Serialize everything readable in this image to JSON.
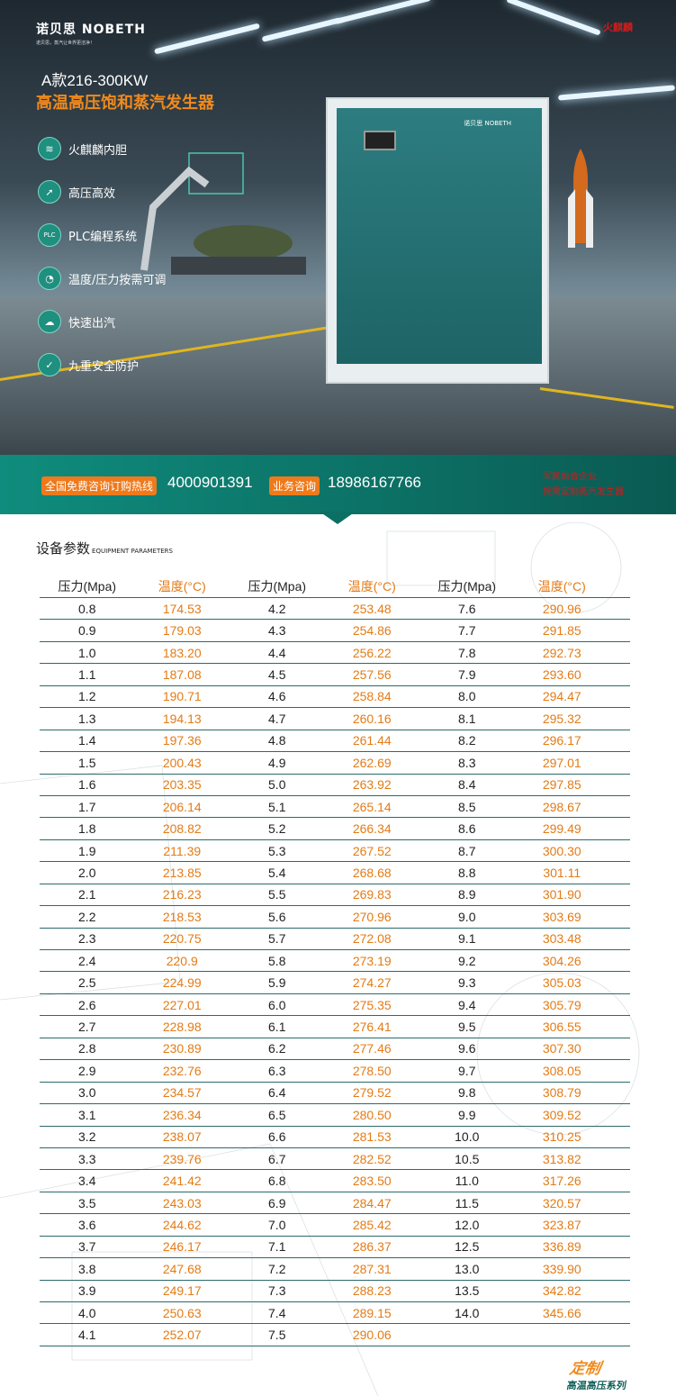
{
  "hero": {
    "logo_text": "诺贝思 NOBETH",
    "logo_slogan": "诺贝思，蒸汽让世界更洁净！",
    "model": "A款216-300KW",
    "subtitle": "高温高压饱和蒸汽发生器",
    "corner_mark": "火麒麟",
    "machine_brand": "诺贝思 NOBETH",
    "features": [
      {
        "icon": "layers-icon",
        "label": "火麒麟内胆"
      },
      {
        "icon": "rocket-icon",
        "label": "高压高效"
      },
      {
        "icon": "plc-icon",
        "label": "PLC编程系统"
      },
      {
        "icon": "gauge-icon",
        "label": "温度/压力按需可调"
      },
      {
        "icon": "cloud-icon",
        "label": "快速出汽"
      },
      {
        "icon": "shield-icon",
        "label": "九重安全防护"
      }
    ]
  },
  "hotline": {
    "tag1": "全国免费咨询订购热线",
    "number1": "4000901391",
    "tag2": "业务咨询",
    "number2": "18986167766",
    "red_line1": "军民融合企业",
    "red_line2": "按需定制蒸汽发生器"
  },
  "section": {
    "title": "设备参数",
    "title_en": "EQUIPMENT PARAMETERS"
  },
  "table": {
    "headers": [
      "压力(Mpa)",
      "温度(°C)",
      "压力(Mpa)",
      "温度(°C)",
      "压力(Mpa)",
      "温度(°C)"
    ],
    "rows": [
      [
        "0.8",
        "174.53",
        "4.2",
        "253.48",
        "7.6",
        "290.96"
      ],
      [
        "0.9",
        "179.03",
        "4.3",
        "254.86",
        "7.7",
        "291.85"
      ],
      [
        "1.0",
        "183.20",
        "4.4",
        "256.22",
        "7.8",
        "292.73"
      ],
      [
        "1.1",
        "187.08",
        "4.5",
        "257.56",
        "7.9",
        "293.60"
      ],
      [
        "1.2",
        "190.71",
        "4.6",
        "258.84",
        "8.0",
        "294.47"
      ],
      [
        "1.3",
        "194.13",
        "4.7",
        "260.16",
        "8.1",
        "295.32"
      ],
      [
        "1.4",
        "197.36",
        "4.8",
        "261.44",
        "8.2",
        "296.17"
      ],
      [
        "1.5",
        "200.43",
        "4.9",
        "262.69",
        "8.3",
        "297.01"
      ],
      [
        "1.6",
        "203.35",
        "5.0",
        "263.92",
        "8.4",
        "297.85"
      ],
      [
        "1.7",
        "206.14",
        "5.1",
        "265.14",
        "8.5",
        "298.67"
      ],
      [
        "1.8",
        "208.82",
        "5.2",
        "266.34",
        "8.6",
        "299.49"
      ],
      [
        "1.9",
        "211.39",
        "5.3",
        "267.52",
        "8.7",
        "300.30"
      ],
      [
        "2.0",
        "213.85",
        "5.4",
        "268.68",
        "8.8",
        "301.11"
      ],
      [
        "2.1",
        "216.23",
        "5.5",
        "269.83",
        "8.9",
        "301.90"
      ],
      [
        "2.2",
        "218.53",
        "5.6",
        "270.96",
        "9.0",
        "303.69"
      ],
      [
        "2.3",
        "220.75",
        "5.7",
        "272.08",
        "9.1",
        "303.48"
      ],
      [
        "2.4",
        "220.9",
        "5.8",
        "273.19",
        "9.2",
        "304.26"
      ],
      [
        "2.5",
        "224.99",
        "5.9",
        "274.27",
        "9.3",
        "305.03"
      ],
      [
        "2.6",
        "227.01",
        "6.0",
        "275.35",
        "9.4",
        "305.79"
      ],
      [
        "2.7",
        "228.98",
        "6.1",
        "276.41",
        "9.5",
        "306.55"
      ],
      [
        "2.8",
        "230.89",
        "6.2",
        "277.46",
        "9.6",
        "307.30"
      ],
      [
        "2.9",
        "232.76",
        "6.3",
        "278.50",
        "9.7",
        "308.05"
      ],
      [
        "3.0",
        "234.57",
        "6.4",
        "279.52",
        "9.8",
        "308.79"
      ],
      [
        "3.1",
        "236.34",
        "6.5",
        "280.50",
        "9.9",
        "309.52"
      ],
      [
        "3.2",
        "238.07",
        "6.6",
        "281.53",
        "10.0",
        "310.25"
      ],
      [
        "3.3",
        "239.76",
        "6.7",
        "282.52",
        "10.5",
        "313.82"
      ],
      [
        "3.4",
        "241.42",
        "6.8",
        "283.50",
        "11.0",
        "317.26"
      ],
      [
        "3.5",
        "243.03",
        "6.9",
        "284.47",
        "11.5",
        "320.57"
      ],
      [
        "3.6",
        "244.62",
        "7.0",
        "285.42",
        "12.0",
        "323.87"
      ],
      [
        "3.7",
        "246.17",
        "7.1",
        "286.37",
        "12.5",
        "336.89"
      ],
      [
        "3.8",
        "247.68",
        "7.2",
        "287.31",
        "13.0",
        "339.90"
      ],
      [
        "3.9",
        "249.17",
        "7.3",
        "288.23",
        "13.5",
        "342.82"
      ],
      [
        "4.0",
        "250.63",
        "7.4",
        "289.15",
        "14.0",
        "345.66"
      ],
      [
        "4.1",
        "252.07",
        "7.5",
        "290.06",
        "",
        ""
      ]
    ]
  },
  "badge": {
    "line1": "定制",
    "line2": "高温高压系列"
  },
  "colors": {
    "teal": "#0c6f64",
    "orange": "#ee7a1c",
    "red": "#d01b1b"
  }
}
